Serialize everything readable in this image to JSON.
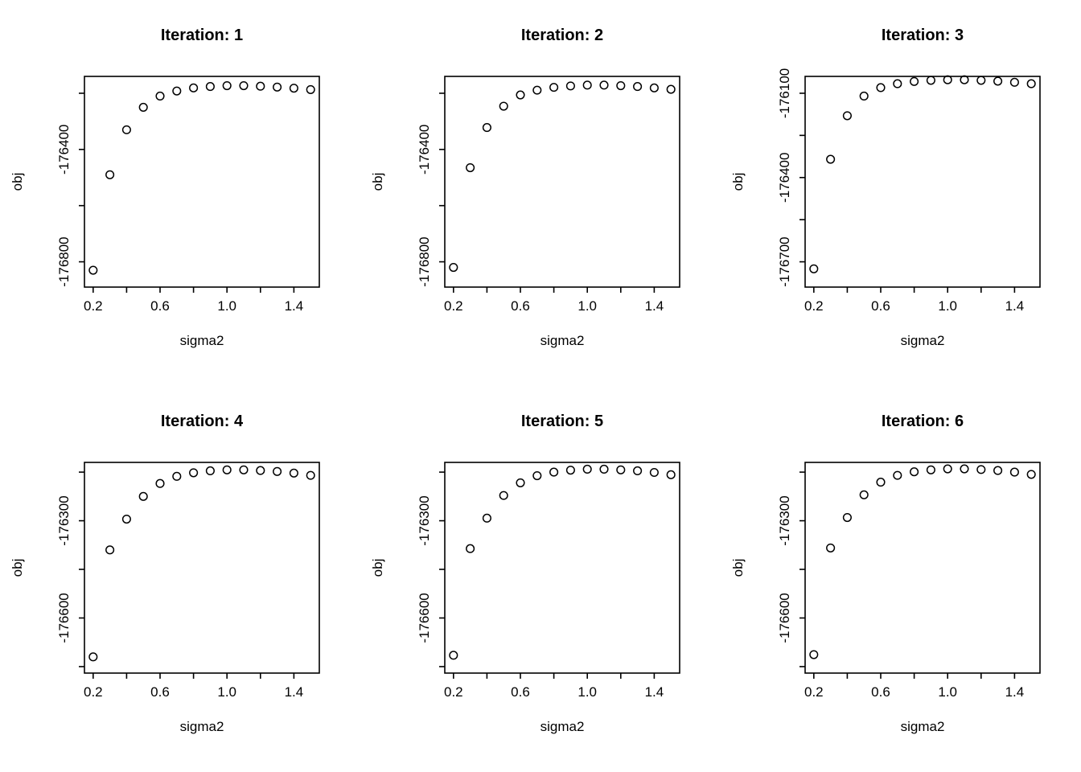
{
  "page": {
    "background": "#ffffff",
    "foreground": "#000000",
    "layout": "2x3 grid of R base scatter plots"
  },
  "chart_data": [
    {
      "type": "scatter",
      "title": "Iteration: 1",
      "xlabel": "sigma2",
      "ylabel": "obj",
      "marker": "open-circle",
      "color": "#000000",
      "xlim": [
        0.148,
        1.552
      ],
      "ylim": [
        -176890,
        -176140
      ],
      "xticks": {
        "values": [
          0.2,
          0.4,
          0.6,
          0.8,
          1.0,
          1.2,
          1.4
        ],
        "labels": [
          "0.2",
          "",
          "0.6",
          "",
          "1.0",
          "",
          "1.4"
        ]
      },
      "yticks": {
        "values": [
          -176200,
          -176400,
          -176600,
          -176800
        ],
        "labels": [
          "",
          "-176400",
          "",
          "-176800"
        ]
      },
      "x": [
        0.2,
        0.3,
        0.4,
        0.5,
        0.6,
        0.7,
        0.8,
        0.9,
        1.0,
        1.1,
        1.2,
        1.3,
        1.4,
        1.5
      ],
      "y": [
        -176830,
        -176490,
        -176330,
        -176250,
        -176210,
        -176192,
        -176181,
        -176176,
        -176173,
        -176173,
        -176175,
        -176178,
        -176182,
        -176187
      ]
    },
    {
      "type": "scatter",
      "title": "Iteration: 2",
      "xlabel": "sigma2",
      "ylabel": "obj",
      "marker": "open-circle",
      "color": "#000000",
      "xlim": [
        0.148,
        1.552
      ],
      "ylim": [
        -176890,
        -176140
      ],
      "xticks": {
        "values": [
          0.2,
          0.4,
          0.6,
          0.8,
          1.0,
          1.2,
          1.4
        ],
        "labels": [
          "0.2",
          "",
          "0.6",
          "",
          "1.0",
          "",
          "1.4"
        ]
      },
      "yticks": {
        "values": [
          -176200,
          -176400,
          -176600,
          -176800
        ],
        "labels": [
          "",
          "-176400",
          "",
          "-176800"
        ]
      },
      "x": [
        0.2,
        0.3,
        0.4,
        0.5,
        0.6,
        0.7,
        0.8,
        0.9,
        1.0,
        1.1,
        1.2,
        1.3,
        1.4,
        1.5
      ],
      "y": [
        -176820,
        -176465,
        -176322,
        -176246,
        -176206,
        -176189,
        -176179,
        -176174,
        -176171,
        -176171,
        -176173,
        -176176,
        -176181,
        -176186
      ]
    },
    {
      "type": "scatter",
      "title": "Iteration: 3",
      "xlabel": "sigma2",
      "ylabel": "obj",
      "marker": "open-circle",
      "color": "#000000",
      "xlim": [
        0.148,
        1.552
      ],
      "ylim": [
        -176790,
        -176040
      ],
      "xticks": {
        "values": [
          0.2,
          0.4,
          0.6,
          0.8,
          1.0,
          1.2,
          1.4
        ],
        "labels": [
          "0.2",
          "",
          "0.6",
          "",
          "1.0",
          "",
          "1.4"
        ]
      },
      "yticks": {
        "values": [
          -176100,
          -176250,
          -176400,
          -176550,
          -176700
        ],
        "labels": [
          "-176100",
          "",
          "-176400",
          "",
          "-176700"
        ]
      },
      "x": [
        0.2,
        0.3,
        0.4,
        0.5,
        0.6,
        0.7,
        0.8,
        0.9,
        1.0,
        1.1,
        1.2,
        1.3,
        1.4,
        1.5
      ],
      "y": [
        -176725,
        -176335,
        -176180,
        -176110,
        -176080,
        -176066,
        -176058,
        -176054,
        -176052,
        -176052,
        -176054,
        -176057,
        -176061,
        -176066
      ]
    },
    {
      "type": "scatter",
      "title": "Iteration: 4",
      "xlabel": "sigma2",
      "ylabel": "obj",
      "marker": "open-circle",
      "color": "#000000",
      "xlim": [
        0.148,
        1.552
      ],
      "ylim": [
        -176770,
        -176120
      ],
      "xticks": {
        "values": [
          0.2,
          0.4,
          0.6,
          0.8,
          1.0,
          1.2,
          1.4
        ],
        "labels": [
          "0.2",
          "",
          "0.6",
          "",
          "1.0",
          "",
          "1.4"
        ]
      },
      "yticks": {
        "values": [
          -176150,
          -176300,
          -176450,
          -176600,
          -176750
        ],
        "labels": [
          "",
          "-176300",
          "",
          "-176600",
          ""
        ]
      },
      "x": [
        0.2,
        0.3,
        0.4,
        0.5,
        0.6,
        0.7,
        0.8,
        0.9,
        1.0,
        1.1,
        1.2,
        1.3,
        1.4,
        1.5
      ],
      "y": [
        -176720,
        -176390,
        -176295,
        -176225,
        -176185,
        -176163,
        -176152,
        -176146,
        -176143,
        -176143,
        -176145,
        -176148,
        -176153,
        -176160
      ]
    },
    {
      "type": "scatter",
      "title": "Iteration: 5",
      "xlabel": "sigma2",
      "ylabel": "obj",
      "marker": "open-circle",
      "color": "#000000",
      "xlim": [
        0.148,
        1.552
      ],
      "ylim": [
        -176770,
        -176120
      ],
      "xticks": {
        "values": [
          0.2,
          0.4,
          0.6,
          0.8,
          1.0,
          1.2,
          1.4
        ],
        "labels": [
          "0.2",
          "",
          "0.6",
          "",
          "1.0",
          "",
          "1.4"
        ]
      },
      "yticks": {
        "values": [
          -176150,
          -176300,
          -176450,
          -176600,
          -176750
        ],
        "labels": [
          "",
          "-176300",
          "",
          "-176600",
          ""
        ]
      },
      "x": [
        0.2,
        0.3,
        0.4,
        0.5,
        0.6,
        0.7,
        0.8,
        0.9,
        1.0,
        1.1,
        1.2,
        1.3,
        1.4,
        1.5
      ],
      "y": [
        -176715,
        -176386,
        -176292,
        -176222,
        -176183,
        -176161,
        -176150,
        -176144,
        -176141,
        -176141,
        -176143,
        -176146,
        -176151,
        -176158
      ]
    },
    {
      "type": "scatter",
      "title": "Iteration: 6",
      "xlabel": "sigma2",
      "ylabel": "obj",
      "marker": "open-circle",
      "color": "#000000",
      "xlim": [
        0.148,
        1.552
      ],
      "ylim": [
        -176770,
        -176120
      ],
      "xticks": {
        "values": [
          0.2,
          0.4,
          0.6,
          0.8,
          1.0,
          1.2,
          1.4
        ],
        "labels": [
          "0.2",
          "",
          "0.6",
          "",
          "1.0",
          "",
          "1.4"
        ]
      },
      "yticks": {
        "values": [
          -176150,
          -176300,
          -176450,
          -176600,
          -176750
        ],
        "labels": [
          "",
          "-176300",
          "",
          "-176600",
          ""
        ]
      },
      "x": [
        0.2,
        0.3,
        0.4,
        0.5,
        0.6,
        0.7,
        0.8,
        0.9,
        1.0,
        1.1,
        1.2,
        1.3,
        1.4,
        1.5
      ],
      "y": [
        -176713,
        -176384,
        -176290,
        -176220,
        -176181,
        -176160,
        -176149,
        -176143,
        -176140,
        -176140,
        -176142,
        -176145,
        -176150,
        -176157
      ]
    }
  ]
}
